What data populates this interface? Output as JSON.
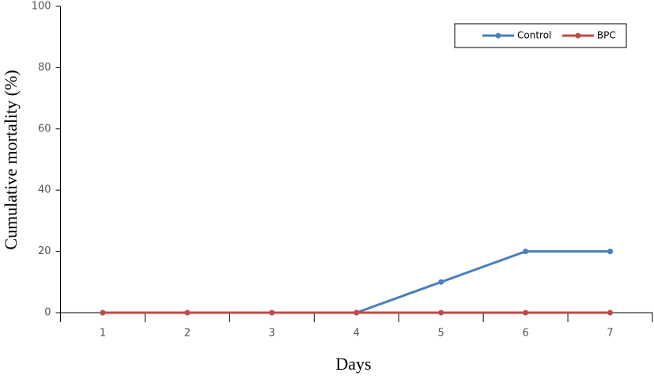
{
  "chart_data": {
    "type": "line",
    "x_label": "Days",
    "y_label": "Cumulative mortality (%)",
    "categories": [
      "1",
      "2",
      "3",
      "4",
      "5",
      "6",
      "7"
    ],
    "series": [
      {
        "name": "Control",
        "color": "#4a7ebb",
        "values": [
          0,
          0,
          0,
          0,
          10,
          20,
          20
        ]
      },
      {
        "name": "BPC",
        "color": "#be4b48",
        "values": [
          0,
          0,
          0,
          0,
          0,
          0,
          0
        ]
      }
    ],
    "ylim": [
      0,
      100
    ],
    "yticks": [
      0,
      20,
      40,
      60,
      80,
      100
    ],
    "grid": false,
    "legend": "upper-right"
  }
}
